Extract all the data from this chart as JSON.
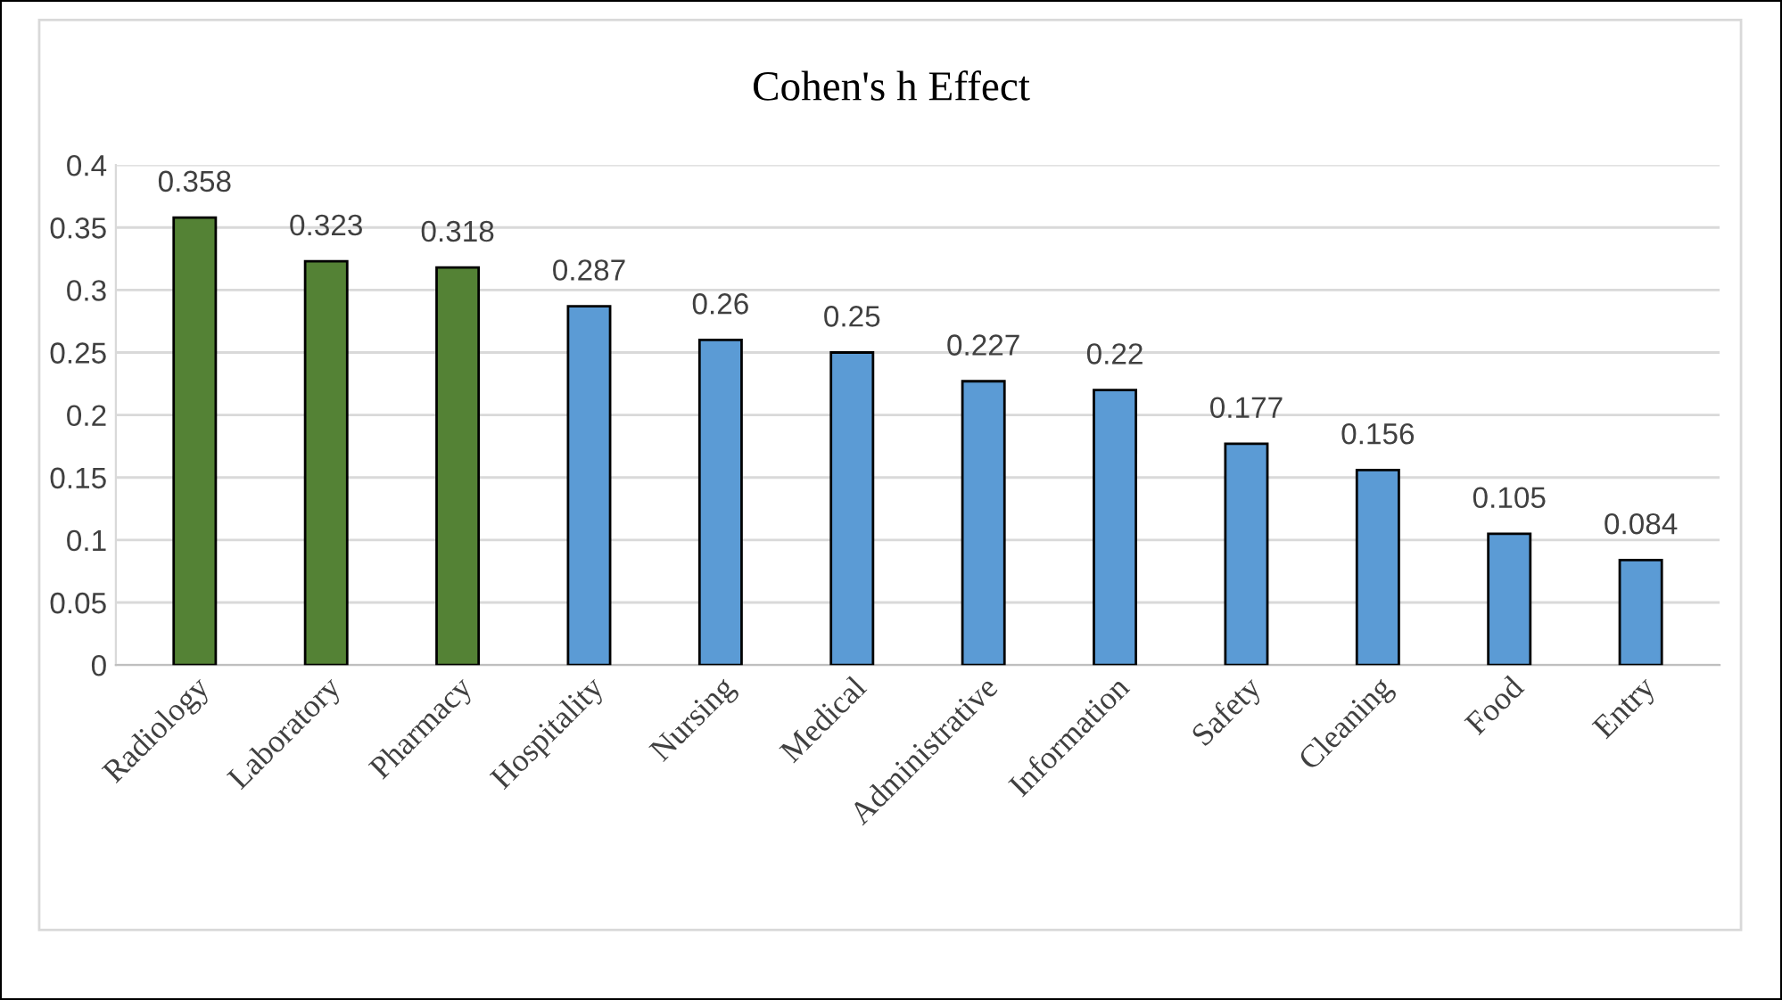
{
  "chart_data": {
    "type": "bar",
    "title": "Cohen's h Effect",
    "categories": [
      "Radiology",
      "Laboratory",
      "Pharmacy",
      "Hospitality",
      "Nursing",
      "Medical",
      "Administrative",
      "Information",
      "Safety",
      "Cleaning",
      "Food",
      "Entry"
    ],
    "values": [
      0.358,
      0.323,
      0.318,
      0.287,
      0.26,
      0.25,
      0.227,
      0.22,
      0.177,
      0.156,
      0.105,
      0.084
    ],
    "colors": [
      "#548235",
      "#548235",
      "#548235",
      "#5b9bd5",
      "#5b9bd5",
      "#5b9bd5",
      "#5b9bd5",
      "#5b9bd5",
      "#5b9bd5",
      "#5b9bd5",
      "#5b9bd5",
      "#5b9bd5"
    ],
    "ylim": [
      0,
      0.4
    ],
    "yticks": [
      0,
      0.05,
      0.1,
      0.15,
      0.2,
      0.25,
      0.3,
      0.35,
      0.4
    ],
    "grid": "y",
    "data_labels": true
  }
}
